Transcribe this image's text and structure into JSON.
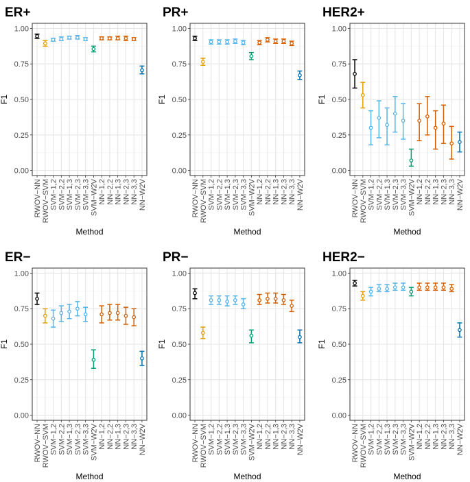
{
  "chart_data": [
    {
      "type": "errorbar",
      "title": "ER+",
      "xlabel": "Method",
      "ylabel": "F1",
      "ylim": [
        0,
        1
      ],
      "yticks": [
        "0.00",
        "0.25",
        "0.50",
        "0.75",
        "1.00"
      ],
      "categories": [
        "RWOV−NN",
        "RWOV−SVM",
        "SVM−1,2",
        "SVM−2,2",
        "SVM−1,3",
        "SVM−2,3",
        "SVM−3,3",
        "SVM−W2V",
        "NN−1,2",
        "NN−2,2",
        "NN−1,3",
        "NN−2,3",
        "NN−3,3",
        "NN−W2V"
      ],
      "values": [
        0.945,
        0.895,
        0.92,
        0.925,
        0.935,
        0.935,
        0.925,
        0.855,
        0.93,
        0.93,
        0.93,
        0.93,
        0.925,
        0.705
      ],
      "lower": [
        0.93,
        0.875,
        0.91,
        0.915,
        0.925,
        0.925,
        0.915,
        0.835,
        0.92,
        0.92,
        0.92,
        0.915,
        0.915,
        0.68
      ],
      "upper": [
        0.96,
        0.915,
        0.93,
        0.94,
        0.945,
        0.95,
        0.935,
        0.875,
        0.94,
        0.94,
        0.945,
        0.945,
        0.935,
        0.735
      ]
    },
    {
      "type": "errorbar",
      "title": "PR+",
      "xlabel": "Method",
      "ylabel": "F1",
      "ylim": [
        0,
        1
      ],
      "yticks": [
        "0.00",
        "0.25",
        "0.50",
        "0.75",
        "1.00"
      ],
      "categories": [
        "RWOV−NN",
        "RWOV−SVM",
        "SVM−1,2",
        "SVM−2,2",
        "SVM−1,3",
        "SVM−2,3",
        "SVM−3,3",
        "SVM−W2V",
        "NN−1,2",
        "NN−2,2",
        "NN−1,3",
        "NN−2,3",
        "NN−3,3",
        "NN−W2V"
      ],
      "values": [
        0.93,
        0.765,
        0.905,
        0.905,
        0.905,
        0.91,
        0.9,
        0.805,
        0.9,
        0.92,
        0.91,
        0.91,
        0.895,
        0.67
      ],
      "lower": [
        0.915,
        0.74,
        0.89,
        0.89,
        0.89,
        0.895,
        0.885,
        0.78,
        0.885,
        0.905,
        0.895,
        0.895,
        0.88,
        0.64
      ],
      "upper": [
        0.945,
        0.79,
        0.92,
        0.92,
        0.92,
        0.925,
        0.915,
        0.83,
        0.915,
        0.935,
        0.925,
        0.925,
        0.91,
        0.7
      ]
    },
    {
      "type": "errorbar",
      "title": "HER2+",
      "xlabel": "Method",
      "ylabel": "F1",
      "ylim": [
        0,
        1
      ],
      "yticks": [
        "0.00",
        "0.25",
        "0.50",
        "0.75",
        "1.00"
      ],
      "categories": [
        "RWOV−NN",
        "RWOV−SVM",
        "SVM−1,2",
        "SVM−2,2",
        "SVM−1,3",
        "SVM−2,3",
        "SVM−3,3",
        "SVM−W2V",
        "NN−1,2",
        "NN−2,2",
        "NN−1,3",
        "NN−2,3",
        "NN−3,3",
        "NN−W2V"
      ],
      "values": [
        0.68,
        0.53,
        0.3,
        0.37,
        0.32,
        0.4,
        0.35,
        0.07,
        0.35,
        0.38,
        0.3,
        0.33,
        0.19,
        0.2
      ],
      "lower": [
        0.58,
        0.44,
        0.18,
        0.23,
        0.18,
        0.27,
        0.22,
        0.03,
        0.21,
        0.25,
        0.15,
        0.19,
        0.08,
        0.13
      ],
      "upper": [
        0.78,
        0.62,
        0.42,
        0.49,
        0.44,
        0.52,
        0.47,
        0.15,
        0.47,
        0.52,
        0.42,
        0.46,
        0.31,
        0.27
      ]
    },
    {
      "type": "errorbar",
      "title": "ER−",
      "xlabel": "Method",
      "ylabel": "F1",
      "ylim": [
        0,
        1
      ],
      "yticks": [
        "0.00",
        "0.25",
        "0.50",
        "0.75",
        "1.00"
      ],
      "categories": [
        "RWOV−NN",
        "RWOV−SVM",
        "SVM−1,2",
        "SVM−2,2",
        "SVM−1,3",
        "SVM−2,3",
        "SVM−3,3",
        "SVM−W2V",
        "NN−1,2",
        "NN−2,2",
        "NN−1,3",
        "NN−2,3",
        "NN−3,3",
        "NN−W2V"
      ],
      "values": [
        0.82,
        0.7,
        0.68,
        0.72,
        0.73,
        0.75,
        0.71,
        0.39,
        0.71,
        0.72,
        0.72,
        0.7,
        0.69,
        0.4
      ],
      "lower": [
        0.78,
        0.65,
        0.62,
        0.66,
        0.68,
        0.7,
        0.66,
        0.33,
        0.65,
        0.67,
        0.67,
        0.64,
        0.63,
        0.35
      ],
      "upper": [
        0.86,
        0.75,
        0.74,
        0.77,
        0.78,
        0.8,
        0.76,
        0.46,
        0.77,
        0.78,
        0.78,
        0.76,
        0.75,
        0.45
      ]
    },
    {
      "type": "errorbar",
      "title": "PR−",
      "xlabel": "Method",
      "ylabel": "F1",
      "ylim": [
        0,
        1
      ],
      "yticks": [
        "0.00",
        "0.25",
        "0.50",
        "0.75",
        "1.00"
      ],
      "categories": [
        "RWOV−NN",
        "RWOV−SVM",
        "SVM−1,2",
        "SVM−2,2",
        "SVM−1,3",
        "SVM−2,3",
        "SVM−3,3",
        "SVM−W2V",
        "NN−1,2",
        "NN−2,2",
        "NN−1,3",
        "NN−2,3",
        "NN−3,3",
        "NN−W2V"
      ],
      "values": [
        0.86,
        0.58,
        0.81,
        0.81,
        0.8,
        0.81,
        0.78,
        0.56,
        0.81,
        0.82,
        0.82,
        0.81,
        0.77,
        0.55
      ],
      "lower": [
        0.82,
        0.54,
        0.78,
        0.78,
        0.77,
        0.78,
        0.75,
        0.51,
        0.78,
        0.79,
        0.79,
        0.78,
        0.73,
        0.51
      ],
      "upper": [
        0.89,
        0.62,
        0.84,
        0.84,
        0.84,
        0.84,
        0.82,
        0.6,
        0.85,
        0.86,
        0.86,
        0.85,
        0.81,
        0.6
      ]
    },
    {
      "type": "errorbar",
      "title": "HER2−",
      "xlabel": "Method",
      "ylabel": "F1",
      "ylim": [
        0,
        1
      ],
      "yticks": [
        "0.00",
        "0.25",
        "0.50",
        "0.75",
        "1.00"
      ],
      "categories": [
        "RWOV−NN",
        "RWOV−SVM",
        "SVM−1,2",
        "SVM−2,2",
        "SVM−1,3",
        "SVM−2,3",
        "SVM−3,3",
        "SVM−W2V",
        "NN−1,2",
        "NN−2,2",
        "NN−1,3",
        "NN−2,3",
        "NN−3,3",
        "NN−W2V"
      ],
      "values": [
        0.93,
        0.84,
        0.87,
        0.89,
        0.89,
        0.9,
        0.9,
        0.87,
        0.9,
        0.9,
        0.9,
        0.9,
        0.89,
        0.6
      ],
      "lower": [
        0.91,
        0.81,
        0.84,
        0.87,
        0.87,
        0.88,
        0.88,
        0.84,
        0.88,
        0.88,
        0.88,
        0.88,
        0.87,
        0.55
      ],
      "upper": [
        0.95,
        0.87,
        0.9,
        0.92,
        0.92,
        0.93,
        0.93,
        0.9,
        0.93,
        0.93,
        0.93,
        0.93,
        0.92,
        0.65
      ]
    }
  ],
  "method_colors": [
    "#000000",
    "#E69F00",
    "#56B4E9",
    "#56B4E9",
    "#56B4E9",
    "#56B4E9",
    "#56B4E9",
    "#009E73",
    "#D55E00",
    "#D55E00",
    "#D55E00",
    "#D55E00",
    "#D55E00",
    "#0072B2"
  ],
  "colors": {
    "panel_border": "#333333",
    "grid_major": "#e6e6e6",
    "grid_minor": "#f2f2f2",
    "text": "#4d4d4d",
    "title": "#000000"
  }
}
